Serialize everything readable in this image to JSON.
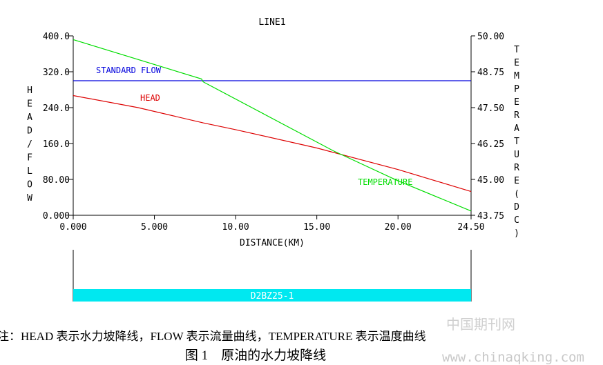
{
  "chart_data": {
    "type": "line",
    "title": "LINE1",
    "xlabel": "DISTANCE(KM)",
    "ylabel_left": "HEAD/FLOW",
    "ylabel_right": "TEMPERATURE(DC)",
    "x_ticks": [
      "0.000",
      "5.000",
      "10.00",
      "15.00",
      "20.00",
      "24.50"
    ],
    "x_tick_values": [
      0,
      5,
      10,
      15,
      20,
      24.5
    ],
    "xlim": [
      0,
      24.5
    ],
    "y_left_ticks": [
      "400.0",
      "320.0",
      "240.0",
      "160.0",
      "80.00",
      "0.000"
    ],
    "y_left_tick_values": [
      400,
      320,
      240,
      160,
      80,
      0
    ],
    "ylim_left": [
      0,
      400
    ],
    "y_right_ticks": [
      "50.00",
      "48.75",
      "47.50",
      "46.25",
      "45.00",
      "43.75"
    ],
    "y_right_tick_values": [
      50,
      48.75,
      47.5,
      46.25,
      45,
      43.75
    ],
    "ylim_right": [
      43.75,
      50
    ],
    "grid": false,
    "series": [
      {
        "name": "STANDARD FLOW",
        "axis": "left",
        "color": "#0000dd",
        "points": [
          [
            0,
            300
          ],
          [
            24.5,
            300
          ]
        ]
      },
      {
        "name": "HEAD",
        "axis": "left",
        "color": "#dd0000",
        "points": [
          [
            0,
            267
          ],
          [
            4,
            240
          ],
          [
            8,
            206
          ],
          [
            10,
            191
          ],
          [
            15,
            150
          ],
          [
            20,
            102
          ],
          [
            24.5,
            53
          ]
        ]
      },
      {
        "name": "TEMPERATURE",
        "axis": "right",
        "color": "#00dd00",
        "points": [
          [
            0,
            49.87
          ],
          [
            7.9,
            48.5
          ],
          [
            8,
            48.4
          ],
          [
            16,
            46.0
          ],
          [
            20,
            44.95
          ],
          [
            24.5,
            43.9
          ]
        ]
      }
    ]
  },
  "station": {
    "label": "D2BZ25-1",
    "color": "#00e8f0"
  },
  "caption": {
    "note": "注：HEAD 表示水力坡降线，FLOW 表示流量曲线，TEMPERATURE 表示温度曲线",
    "figure": "图 1　原油的水力坡降线"
  },
  "watermark": {
    "cn": "中国期刊网",
    "url": "www.chinaqking.com"
  }
}
